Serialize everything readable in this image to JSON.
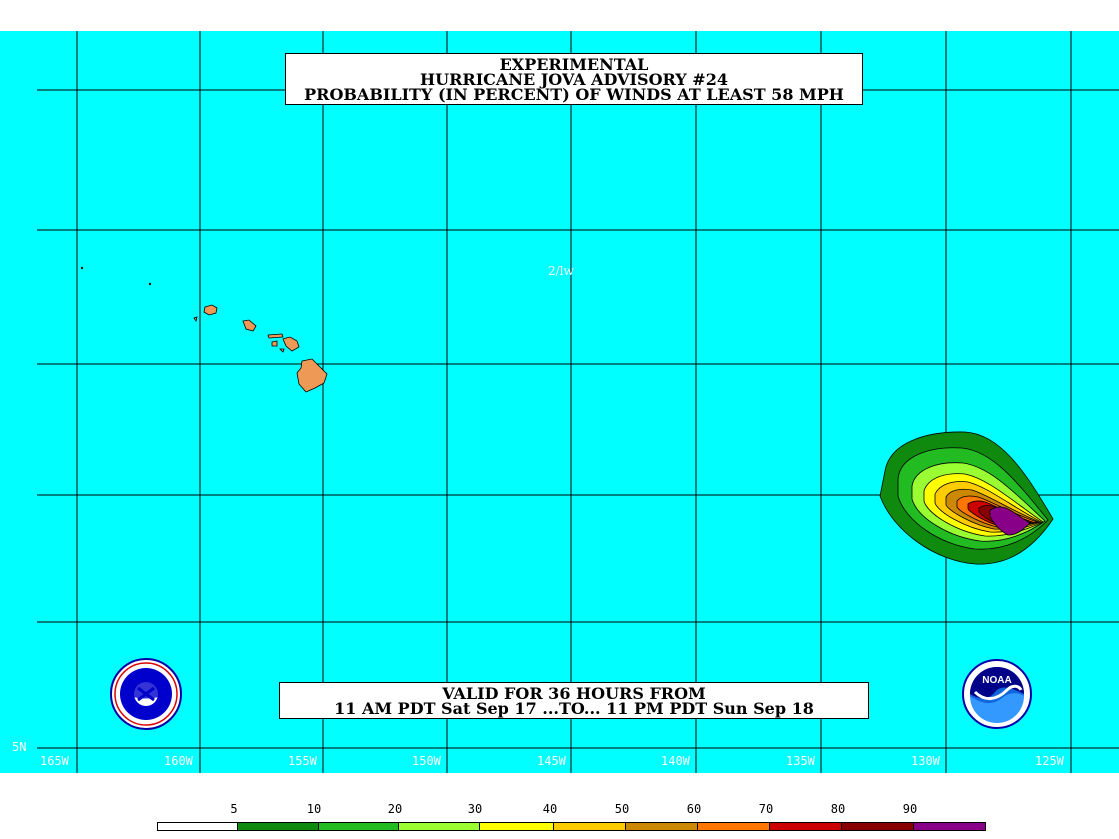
{
  "title": {
    "line1": "EXPERIMENTAL",
    "line2": "HURRICANE JOVA ADVISORY #24",
    "line3": "PROBABILITY (IN PERCENT) OF WINDS AT LEAST 58 MPH"
  },
  "valid": {
    "line1": "VALID FOR 36 HOURS FROM",
    "line2": "11 AM PDT Sat Sep 17 ...TO... 11 PM PDT Sun Sep 18"
  },
  "credit": "2/lw",
  "longitude_labels": [
    "165W",
    "160W",
    "155W",
    "150W",
    "145W",
    "140W",
    "135W",
    "130W",
    "125W"
  ],
  "latitude_labels": [
    "5N"
  ],
  "legend": {
    "thresholds": [
      "5",
      "10",
      "20",
      "30",
      "40",
      "50",
      "60",
      "70",
      "80",
      "90"
    ],
    "colors": [
      "#ffffff",
      "#0f8a0f",
      "#22bb22",
      "#99ff33",
      "#ffff00",
      "#ffcc00",
      "#cc8800",
      "#ff7700",
      "#cc0000",
      "#880000",
      "#880088"
    ]
  },
  "logos": {
    "left": "National Weather Service logo",
    "right": "NOAA logo"
  }
}
